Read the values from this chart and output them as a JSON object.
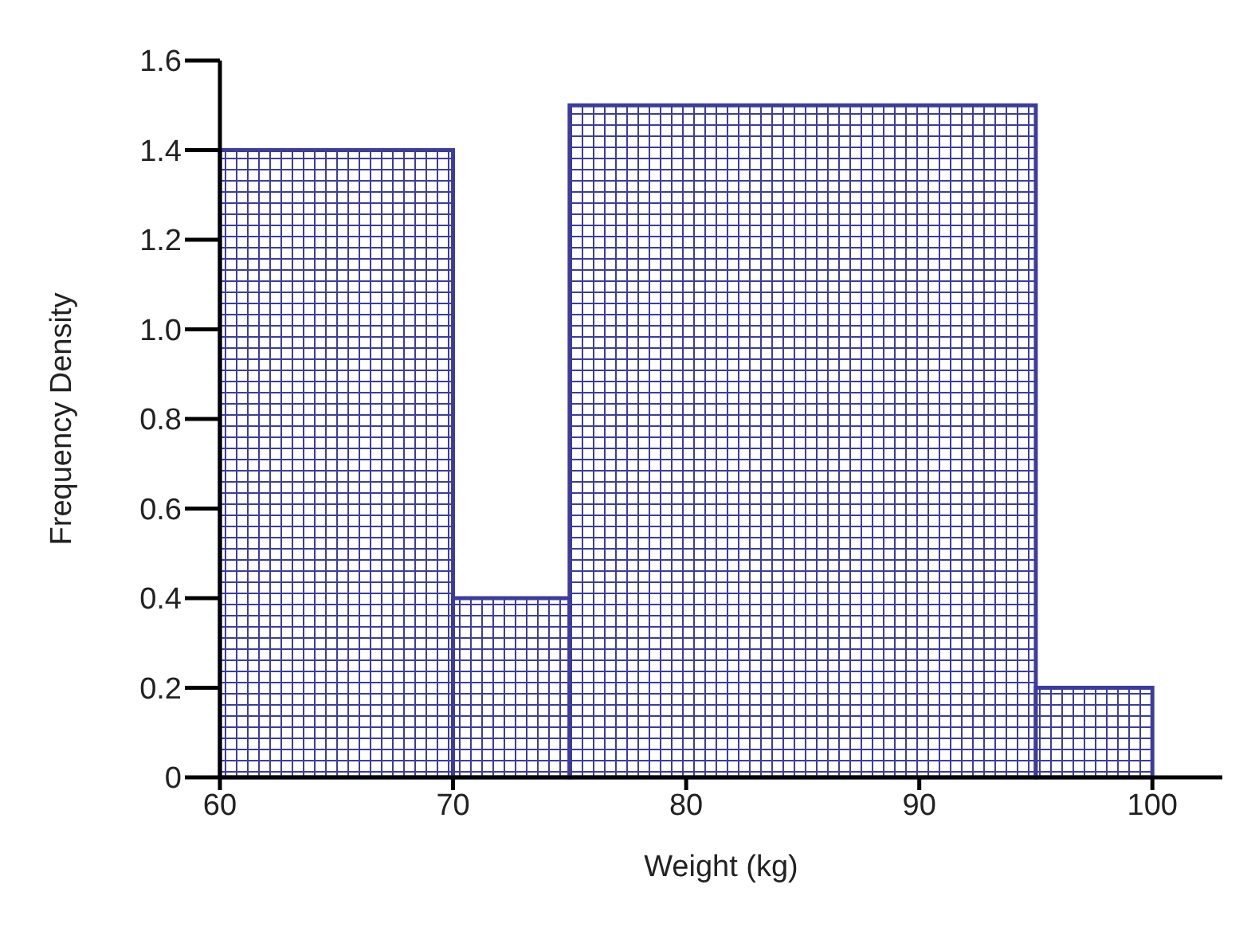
{
  "chart_data": {
    "type": "histogram",
    "xlabel": "Weight (kg)",
    "ylabel": "Frequency Density",
    "bins": [
      60,
      70,
      75,
      95,
      100
    ],
    "values": [
      1.4,
      0.4,
      1.5,
      0.2
    ],
    "color": "#3c3ca0",
    "xlim": [
      60,
      103
    ],
    "xticks": [
      60,
      70,
      80,
      90,
      100
    ],
    "ylim": [
      0,
      1.6
    ],
    "yticks": [
      0,
      0.2,
      0.4,
      0.6,
      0.8,
      {
        "value": 1,
        "label": "1.0"
      },
      1.2,
      1.4,
      1.6
    ],
    "grid": false
  }
}
